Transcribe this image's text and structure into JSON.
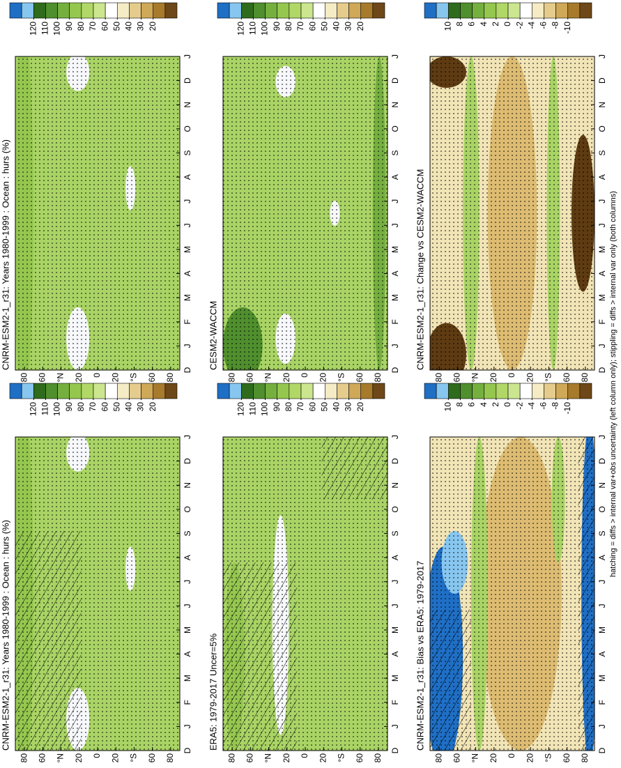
{
  "panels": [
    {
      "title": "CNRM-ESM2-1_r31: Years 1980-1999 : Ocean : hurs (%)",
      "colorbar_labels": [
        120,
        110,
        100,
        90,
        80,
        70,
        60,
        50,
        40,
        30,
        20
      ]
    },
    {
      "title": "CNRM-ESM2-1_r31: Years 1980-1999 : Ocean : hurs (%)",
      "colorbar_labels": [
        120,
        110,
        100,
        90,
        80,
        70,
        60,
        50,
        40,
        30,
        20
      ]
    },
    {
      "title": "ERA5: 1979-2017 Uncer=5%",
      "colorbar_labels": [
        120,
        110,
        100,
        90,
        80,
        70,
        60,
        50,
        40,
        30,
        20
      ]
    },
    {
      "title": "CESM2-WACCM",
      "colorbar_labels": [
        120,
        110,
        100,
        90,
        80,
        70,
        60,
        50,
        40,
        30,
        20
      ]
    },
    {
      "title": "CNRM-ESM2-1_r31: Bias vs ERA5: 1979-2017",
      "colorbar_labels": [
        10,
        8,
        6,
        4,
        2,
        0,
        -2,
        -4,
        -6,
        -8,
        -10
      ]
    },
    {
      "title": "CNRM-ESM2-1_r31: Change vs CESM2-WACCM",
      "colorbar_labels": [
        10,
        8,
        6,
        4,
        2,
        0,
        -2,
        -4,
        -6,
        -8,
        -10
      ]
    }
  ],
  "lat_labels": [
    "80",
    "60",
    "°N",
    "20",
    "0",
    "20",
    "°S",
    "60",
    "80"
  ],
  "month_labels": [
    "D",
    "J",
    "F",
    "M",
    "A",
    "M",
    "J",
    "J",
    "A",
    "S",
    "O",
    "N",
    "D",
    "J"
  ],
  "footnote": "hatching = diffs > internal var+obs uncertainty (left column only); stippling = diffs > internal var only (both columns)"
}
